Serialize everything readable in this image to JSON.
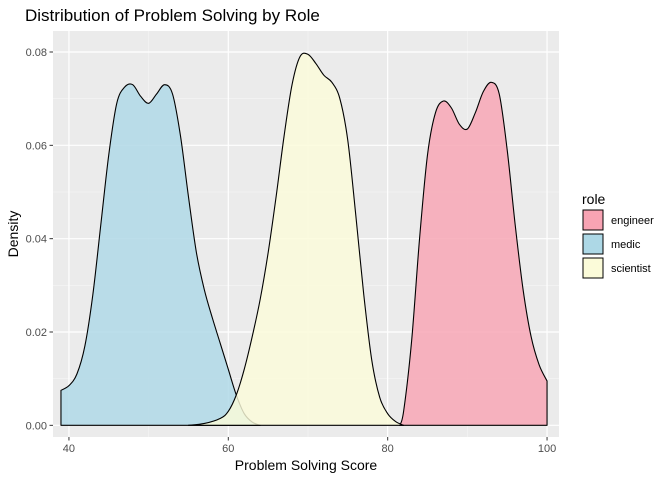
{
  "chart_data": {
    "type": "area",
    "subtype": "density",
    "title": "Distribution of Problem Solving by Role",
    "xlabel": "Problem Solving Score",
    "ylabel": "Density",
    "xlim": [
      38,
      101.5
    ],
    "ylim": [
      -0.0025,
      0.0845
    ],
    "x_ticks": [
      40,
      60,
      80,
      100
    ],
    "y_ticks": [
      0.0,
      0.02,
      0.04,
      0.06,
      0.08
    ],
    "y_tick_labels": [
      "0.00",
      "0.02",
      "0.04",
      "0.06",
      "0.08"
    ],
    "grid": true,
    "legend": {
      "title": "role",
      "position": "right"
    },
    "series": [
      {
        "name": "engineer",
        "color": "#F8A3B3",
        "x": [
          81.5,
          82,
          83,
          84,
          85,
          86,
          87,
          88,
          89,
          90,
          91,
          92,
          93,
          94,
          95,
          96,
          97,
          98,
          99,
          100
        ],
        "y": [
          0.0,
          0.003,
          0.018,
          0.04,
          0.058,
          0.067,
          0.0695,
          0.068,
          0.0645,
          0.0635,
          0.067,
          0.0715,
          0.0735,
          0.071,
          0.059,
          0.043,
          0.029,
          0.019,
          0.013,
          0.0095
        ]
      },
      {
        "name": "medic",
        "color": "#ADD8E6",
        "x": [
          39,
          40,
          41,
          42,
          43,
          44,
          45,
          46,
          47,
          48,
          49,
          50,
          51,
          52,
          53,
          54,
          55,
          56,
          57,
          58,
          59,
          60,
          61,
          62,
          63,
          64
        ],
        "y": [
          0.0075,
          0.0085,
          0.011,
          0.017,
          0.028,
          0.043,
          0.058,
          0.069,
          0.0725,
          0.073,
          0.0705,
          0.069,
          0.071,
          0.073,
          0.071,
          0.062,
          0.049,
          0.037,
          0.029,
          0.023,
          0.0175,
          0.012,
          0.0065,
          0.0025,
          0.0007,
          0.0
        ]
      },
      {
        "name": "scientist",
        "color": "#FBFBD9",
        "x": [
          55,
          57,
          59,
          60,
          61,
          62,
          63,
          64,
          65,
          66,
          67,
          68,
          69,
          70,
          71,
          72,
          73,
          74,
          75,
          76,
          77,
          78,
          79,
          80,
          81,
          82
        ],
        "y": [
          0.0,
          0.0004,
          0.0015,
          0.003,
          0.0065,
          0.012,
          0.019,
          0.027,
          0.037,
          0.049,
          0.062,
          0.073,
          0.079,
          0.0795,
          0.0775,
          0.075,
          0.0735,
          0.07,
          0.061,
          0.045,
          0.028,
          0.014,
          0.006,
          0.0025,
          0.0008,
          0.0
        ]
      }
    ]
  }
}
